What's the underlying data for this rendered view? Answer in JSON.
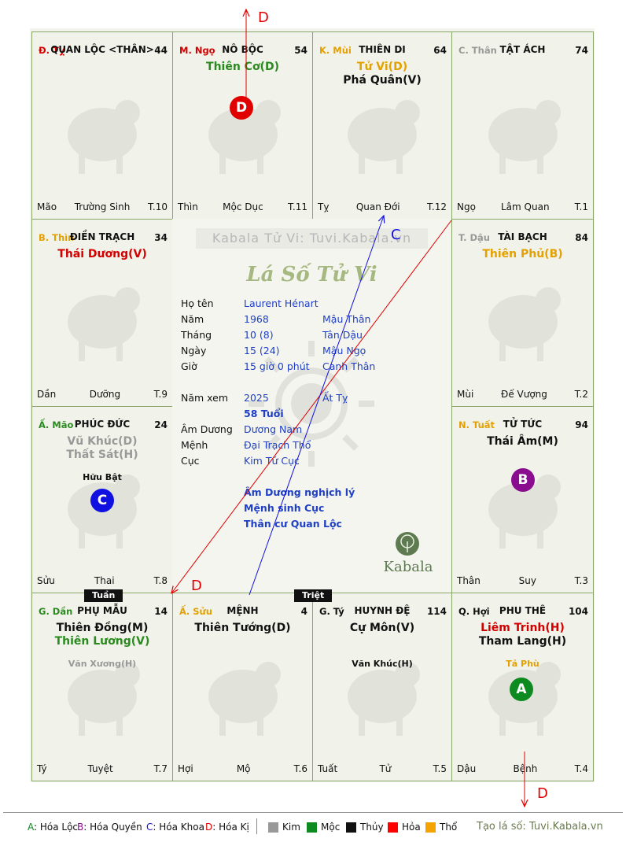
{
  "palaces": [
    {
      "pos": "Đ. Tỵ",
      "pos_color": "#d40000",
      "name": "QUAN LỘC <THÂN>",
      "num": "44",
      "stars": [],
      "minors": [],
      "foot_left": "Mão",
      "foot_mid": "Trường Sinh",
      "foot_right": "T.10"
    },
    {
      "pos": "M. Ngọ",
      "pos_color": "#d40000",
      "name": "NÔ BỘC",
      "num": "54",
      "stars": [
        {
          "text": "Thiên Cơ(D)",
          "color": "#2a8a1f"
        }
      ],
      "minors": [],
      "foot_left": "Thìn",
      "foot_mid": "Mộc Dục",
      "foot_right": "T.11"
    },
    {
      "pos": "K. Mùi",
      "pos_color": "#e3a000",
      "name": "THIÊN DI",
      "num": "64",
      "stars": [
        {
          "text": "Tử Vi(D)",
          "color": "#e3a000"
        },
        {
          "text": "Phá Quân(V)",
          "color": "#111111"
        }
      ],
      "minors": [],
      "foot_left": "Tỵ",
      "foot_mid": "Quan Đới",
      "foot_right": "T.12"
    },
    {
      "pos": "C. Thân",
      "pos_color": "#999999",
      "name": "TẬT ÁCH",
      "num": "74",
      "stars": [],
      "minors": [],
      "foot_left": "Ngọ",
      "foot_mid": "Lâm Quan",
      "foot_right": "T.1"
    },
    {
      "pos": "B. Thìn",
      "pos_color": "#e3a000",
      "name": "ĐIỀN TRẠCH",
      "num": "34",
      "stars": [
        {
          "text": "Thái Dương(V)",
          "color": "#d40000"
        }
      ],
      "minors": [],
      "foot_left": "Dần",
      "foot_mid": "Dưỡng",
      "foot_right": "T.9"
    },
    {
      "pos": "T. Dậu",
      "pos_color": "#999999",
      "name": "TÀI BẠCH",
      "num": "84",
      "stars": [
        {
          "text": "Thiên Phủ(B)",
          "color": "#e3a000"
        }
      ],
      "minors": [],
      "foot_left": "Mùi",
      "foot_mid": "Đế Vượng",
      "foot_right": "T.2"
    },
    {
      "pos": "Ấ. Mão",
      "pos_color": "#2a8a1f",
      "name": "PHÚC ĐỨC",
      "num": "24",
      "stars": [
        {
          "text": "Vũ Khúc(D)",
          "color": "#999999"
        },
        {
          "text": "Thất Sát(H)",
          "color": "#999999"
        }
      ],
      "minors": [
        {
          "text": "Hữu Bật",
          "color": "#111111"
        }
      ],
      "foot_left": "Sửu",
      "foot_mid": "Thai",
      "foot_right": "T.8"
    },
    {
      "pos": "N. Tuất",
      "pos_color": "#e3a000",
      "name": "TỬ TỨC",
      "num": "94",
      "stars": [
        {
          "text": "Thái Âm(M)",
          "color": "#111111"
        }
      ],
      "minors": [],
      "foot_left": "Thân",
      "foot_mid": "Suy",
      "foot_right": "T.3"
    },
    {
      "pos": "G. Dần",
      "pos_color": "#2a8a1f",
      "name": "PHỤ MẪU",
      "num": "14",
      "stars": [
        {
          "text": "Thiên Đồng(M)",
          "color": "#111111"
        },
        {
          "text": "Thiên Lương(V)",
          "color": "#2a8a1f"
        }
      ],
      "minors": [
        {
          "text": "Văn Xương(H)",
          "color": "#999999"
        }
      ],
      "foot_left": "Tý",
      "foot_mid": "Tuyệt",
      "foot_right": "T.7"
    },
    {
      "pos": "Ấ. Sửu",
      "pos_color": "#e3a000",
      "name": "MỆNH",
      "num": "4",
      "stars": [
        {
          "text": "Thiên Tướng(D)",
          "color": "#111111"
        }
      ],
      "minors": [],
      "foot_left": "Hợi",
      "foot_mid": "Mộ",
      "foot_right": "T.6"
    },
    {
      "pos": "G. Tý",
      "pos_color": "#111111",
      "name": "HUYNH ĐỆ",
      "num": "114",
      "stars": [
        {
          "text": "Cự Môn(V)",
          "color": "#111111"
        }
      ],
      "minors": [
        {
          "text": "Văn Khúc(H)",
          "color": "#111111"
        }
      ],
      "foot_left": "Tuất",
      "foot_mid": "Tử",
      "foot_right": "T.5"
    },
    {
      "pos": "Q. Hợi",
      "pos_color": "#111111",
      "name": "PHU THÊ",
      "num": "104",
      "stars": [
        {
          "text": "Liêm Trinh(H)",
          "color": "#d40000"
        },
        {
          "text": "Tham Lang(H)",
          "color": "#111111"
        }
      ],
      "minors": [
        {
          "text": "Tả Phù",
          "color": "#e3a000"
        }
      ],
      "foot_left": "Dậu",
      "foot_mid": "Bệnh",
      "foot_right": "T.4"
    }
  ],
  "badges": [
    {
      "letter": "D",
      "color": "#e00000"
    },
    {
      "letter": "C",
      "color": "#1010e0"
    },
    {
      "letter": "B",
      "color": "#8a0d8f"
    },
    {
      "letter": "A",
      "color": "#0d8a20"
    }
  ],
  "arrow_labels": {
    "top": "D",
    "mid_c": "C",
    "mid_d": "D",
    "bottom": "D"
  },
  "tags": {
    "tuan": "Tuần",
    "triet": "Triệt"
  },
  "center": {
    "watermark": "Kabala Tử Vi: Tuvi.Kabala.vn",
    "title": "Lá Số Tử Vi",
    "logo_text": "Kabala",
    "rows": [
      {
        "k": "Họ tên",
        "v1": "Laurent Hénart",
        "v2": ""
      },
      {
        "k": "Năm",
        "v1": "1968",
        "v2": "Mậu Thân"
      },
      {
        "k": "Tháng",
        "v1": "10  (8)",
        "v2": "Tân Dậu"
      },
      {
        "k": "Ngày",
        "v1": "15  (24)",
        "v2": "Mậu Ngọ"
      },
      {
        "k": "Giờ",
        "v1": "15 giờ 0 phút",
        "v2": "Canh Thân"
      },
      {
        "k": "Năm xem",
        "v1": "2025",
        "v2": "Ất Tỵ"
      },
      {
        "k": "",
        "v1": "58 Tuổi",
        "v2": ""
      },
      {
        "k": "Âm Dương",
        "v1": "Dương Nam",
        "v2": ""
      },
      {
        "k": "Mệnh",
        "v1": "Đại Trạch Thổ",
        "v2": ""
      },
      {
        "k": "Cục",
        "v1": "Kim Tứ Cục",
        "v2": ""
      }
    ],
    "notes": [
      "Âm Dương nghịch lý",
      "Mệnh sinh Cục",
      "Thân cư Quan Lộc"
    ]
  },
  "legend": {
    "hoa": [
      {
        "key": "A",
        "label": ": Hóa Lộc",
        "color": "#0d8a20"
      },
      {
        "key": "B",
        "label": ": Hóa Quyền",
        "color": "#8a0d8f"
      },
      {
        "key": "C",
        "label": ": Hóa Khoa",
        "color": "#1010e0"
      },
      {
        "key": "D",
        "label": ": Hóa Kị",
        "color": "#e00000"
      }
    ],
    "elements": [
      {
        "label": "Kim",
        "color": "#999999"
      },
      {
        "label": "Mộc",
        "color": "#0d8a20"
      },
      {
        "label": "Thủy",
        "color": "#111111"
      },
      {
        "label": "Hỏa",
        "color": "#ff0000"
      },
      {
        "label": "Thổ",
        "color": "#f5a300"
      }
    ],
    "credit": "Tạo lá số: Tuvi.Kabala.vn"
  }
}
